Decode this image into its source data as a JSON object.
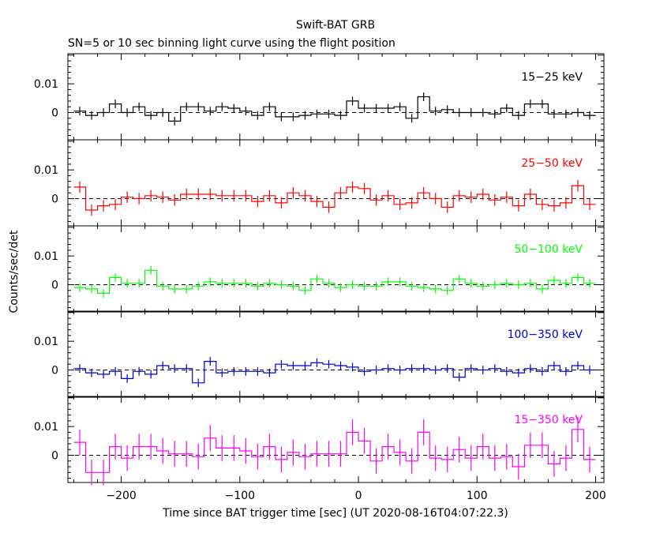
{
  "title": "Swift-BAT GRB",
  "subtitle": "SN=5 or 10 sec binning light curve using the flight position",
  "xlabel": "Time since BAT trigger time [sec] (UT 2020-08-16T04:07:22.3)",
  "ylabel": "Counts/sec/det",
  "chart_data": {
    "type": "line",
    "style": "step-with-error-bars",
    "title": "Swift-BAT GRB",
    "subtitle": "SN=5 or 10 sec binning light curve using the flight position",
    "xlabel": "Time since BAT trigger time [sec] (UT 2020-08-16T04:07:22.3)",
    "ylabel": "Counts/sec/det",
    "xlim": [
      -245,
      207
    ],
    "x_ticks": [
      -200,
      -100,
      0,
      100,
      200
    ],
    "x_tick_labels": [
      "−200",
      "−100",
      "0",
      "100",
      "200"
    ],
    "y_ticks": [
      0,
      0.01
    ],
    "y_tick_labels": [
      "0",
      "0.01"
    ],
    "bin_width_sec": 10,
    "x": [
      -235,
      -225,
      -215,
      -205,
      -195,
      -185,
      -175,
      -165,
      -155,
      -145,
      -135,
      -125,
      -115,
      -105,
      -95,
      -85,
      -75,
      -65,
      -55,
      -45,
      -35,
      -25,
      -15,
      -5,
      5,
      15,
      25,
      35,
      45,
      55,
      65,
      75,
      85,
      95,
      105,
      115,
      125,
      135,
      145,
      155,
      165,
      175,
      185,
      195
    ],
    "panels": [
      {
        "label": "15−25 keV",
        "color": "#000000",
        "ylim": [
          -0.0095,
          0.0205
        ],
        "values": [
          0.0005,
          -0.001,
          0,
          0.003,
          0,
          0.002,
          -0.001,
          0,
          -0.003,
          0.002,
          0.002,
          0.0005,
          0.002,
          0.0015,
          0.0005,
          -0.001,
          0.002,
          -0.0015,
          -0.0015,
          -0.001,
          -0.0005,
          -0.0005,
          -0.001,
          0.004,
          0.0015,
          0.0015,
          0.0015,
          0.002,
          -0.002,
          0.0055,
          0.0005,
          0.001,
          0,
          0,
          0,
          -0.0005,
          0.0015,
          -0.001,
          0.003,
          0.003,
          -0.0005,
          -0.0005,
          0,
          -0.001
        ],
        "errors": [
          0.0015,
          0.0015,
          0.0015,
          0.0015,
          0.0015,
          0.0015,
          0.0015,
          0.0015,
          0.0015,
          0.0015,
          0.0015,
          0.0015,
          0.0015,
          0.0015,
          0.0015,
          0.0015,
          0.0015,
          0.0015,
          0.0015,
          0.0015,
          0.0015,
          0.0015,
          0.0015,
          0.0015,
          0.0015,
          0.0015,
          0.0015,
          0.0015,
          0.0015,
          0.0015,
          0.0015,
          0.0015,
          0.0015,
          0.0015,
          0.0015,
          0.0015,
          0.0015,
          0.0015,
          0.0015,
          0.0015,
          0.0015,
          0.0015,
          0.0015,
          0.0015
        ]
      },
      {
        "label": "25−50 keV",
        "color": "#ff0000",
        "ylim": [
          -0.0095,
          0.0205
        ],
        "values": [
          0.004,
          -0.004,
          -0.0025,
          -0.002,
          0.0005,
          0,
          0.001,
          0.0005,
          -0.0005,
          0.0015,
          0.0015,
          0.0015,
          0.001,
          0.001,
          0.001,
          -0.001,
          0.001,
          -0.0015,
          0.002,
          0.001,
          -0.001,
          -0.003,
          0.002,
          0.004,
          0.0035,
          -0.0005,
          0.001,
          -0.002,
          -0.0015,
          0.002,
          0,
          -0.003,
          0.001,
          0.0005,
          0.0015,
          -0.0005,
          0.0005,
          -0.0025,
          0.0015,
          -0.002,
          -0.0025,
          -0.0015,
          0.0045,
          -0.002
        ],
        "errors": [
          0.002,
          0.002,
          0.002,
          0.002,
          0.002,
          0.002,
          0.002,
          0.002,
          0.002,
          0.002,
          0.002,
          0.002,
          0.002,
          0.002,
          0.002,
          0.002,
          0.002,
          0.002,
          0.002,
          0.002,
          0.002,
          0.002,
          0.002,
          0.002,
          0.002,
          0.002,
          0.002,
          0.002,
          0.002,
          0.002,
          0.002,
          0.002,
          0.002,
          0.002,
          0.002,
          0.002,
          0.002,
          0.002,
          0.002,
          0.002,
          0.002,
          0.002,
          0.002,
          0.002
        ]
      },
      {
        "label": "50−100 keV",
        "color": "#00ff00",
        "ylim": [
          -0.0095,
          0.0205
        ],
        "values": [
          -0.001,
          -0.0015,
          -0.003,
          0.0025,
          0.0005,
          0.0005,
          0.005,
          -0.0005,
          -0.0015,
          -0.0015,
          -0.0005,
          0.001,
          0.0005,
          0.0005,
          0.0005,
          -0.0005,
          0.0005,
          0,
          -0.0005,
          -0.002,
          0.002,
          0.0005,
          -0.001,
          0,
          -0.0005,
          -0.0005,
          0.001,
          0.001,
          -0.0005,
          -0.001,
          -0.0015,
          -0.002,
          0.002,
          0.0005,
          -0.0005,
          0,
          0.0005,
          0,
          0.0005,
          -0.0015,
          0.0015,
          0.0005,
          0.0025,
          0.0005
        ],
        "errors": [
          0.0015,
          0.0015,
          0.0015,
          0.0015,
          0.0015,
          0.0015,
          0.0015,
          0.0015,
          0.0015,
          0.0015,
          0.0015,
          0.0015,
          0.0015,
          0.0015,
          0.0015,
          0.0015,
          0.0015,
          0.0015,
          0.0015,
          0.0015,
          0.0015,
          0.0015,
          0.0015,
          0.0015,
          0.0015,
          0.0015,
          0.0015,
          0.0015,
          0.0015,
          0.0015,
          0.0015,
          0.0015,
          0.0015,
          0.0015,
          0.0015,
          0.0015,
          0.0015,
          0.0015,
          0.0015,
          0.0015,
          0.0015,
          0.0015,
          0.0015,
          0.0015
        ]
      },
      {
        "label": "100−350 keV",
        "color": "#0000cc",
        "ylim": [
          -0.0095,
          0.0205
        ],
        "values": [
          0.0005,
          -0.001,
          -0.0015,
          -0.0005,
          -0.003,
          -0.0005,
          -0.0015,
          0.0015,
          0.0005,
          0.0005,
          -0.0045,
          0.003,
          -0.001,
          -0.0005,
          -0.0005,
          -0.0005,
          -0.001,
          0.002,
          0.0015,
          0.0015,
          0.0025,
          0.002,
          0.0015,
          0.001,
          -0.0005,
          0,
          0.0005,
          0,
          0.0005,
          0.0005,
          0,
          0.0005,
          -0.0025,
          0.0005,
          0,
          0.0005,
          -0.0005,
          -0.001,
          0.0005,
          -0.0005,
          0.0015,
          -0.0005,
          0.0015,
          0
        ],
        "errors": [
          0.0015,
          0.0015,
          0.0015,
          0.0015,
          0.0015,
          0.0015,
          0.0015,
          0.0015,
          0.0015,
          0.0015,
          0.0015,
          0.0015,
          0.0015,
          0.0015,
          0.0015,
          0.0015,
          0.0015,
          0.0015,
          0.0015,
          0.0015,
          0.0015,
          0.0015,
          0.0015,
          0.0015,
          0.0015,
          0.0015,
          0.0015,
          0.0015,
          0.0015,
          0.0015,
          0.0015,
          0.0015,
          0.0015,
          0.0015,
          0.0015,
          0.0015,
          0.0015,
          0.0015,
          0.0015,
          0.0015,
          0.0015,
          0.0015,
          0.0015,
          0.0015
        ]
      },
      {
        "label": "15−350 keV",
        "color": "#ff00ff",
        "ylim": [
          -0.0095,
          0.0205
        ],
        "values": [
          0.0045,
          -0.006,
          -0.006,
          0.003,
          -0.001,
          0.003,
          0.003,
          0.0015,
          0.0005,
          0.0005,
          -0.0005,
          0.006,
          0.0025,
          0.0025,
          0.0015,
          -0.0005,
          0.003,
          -0.0015,
          0.001,
          -0.0005,
          0.0005,
          0.0005,
          0.0005,
          0.008,
          0.005,
          -0.002,
          0.003,
          0.001,
          -0.002,
          0.008,
          -0.001,
          -0.0015,
          0.002,
          -0.001,
          0.003,
          -0.001,
          -0.0005,
          -0.004,
          0.0035,
          0.0035,
          -0.003,
          -0.001,
          0.009,
          -0.0015
        ],
        "errors": [
          0.0045,
          0.0045,
          0.0045,
          0.0045,
          0.0045,
          0.0045,
          0.0045,
          0.0045,
          0.0045,
          0.0045,
          0.0045,
          0.0045,
          0.0045,
          0.0045,
          0.0045,
          0.0045,
          0.0045,
          0.0045,
          0.0045,
          0.0045,
          0.0045,
          0.0045,
          0.0045,
          0.0045,
          0.0045,
          0.0045,
          0.0045,
          0.0045,
          0.0045,
          0.0045,
          0.0045,
          0.0045,
          0.0045,
          0.0045,
          0.0045,
          0.0045,
          0.0045,
          0.0045,
          0.0045,
          0.0045,
          0.0045,
          0.0045,
          0.0045,
          0.0045
        ]
      }
    ]
  }
}
